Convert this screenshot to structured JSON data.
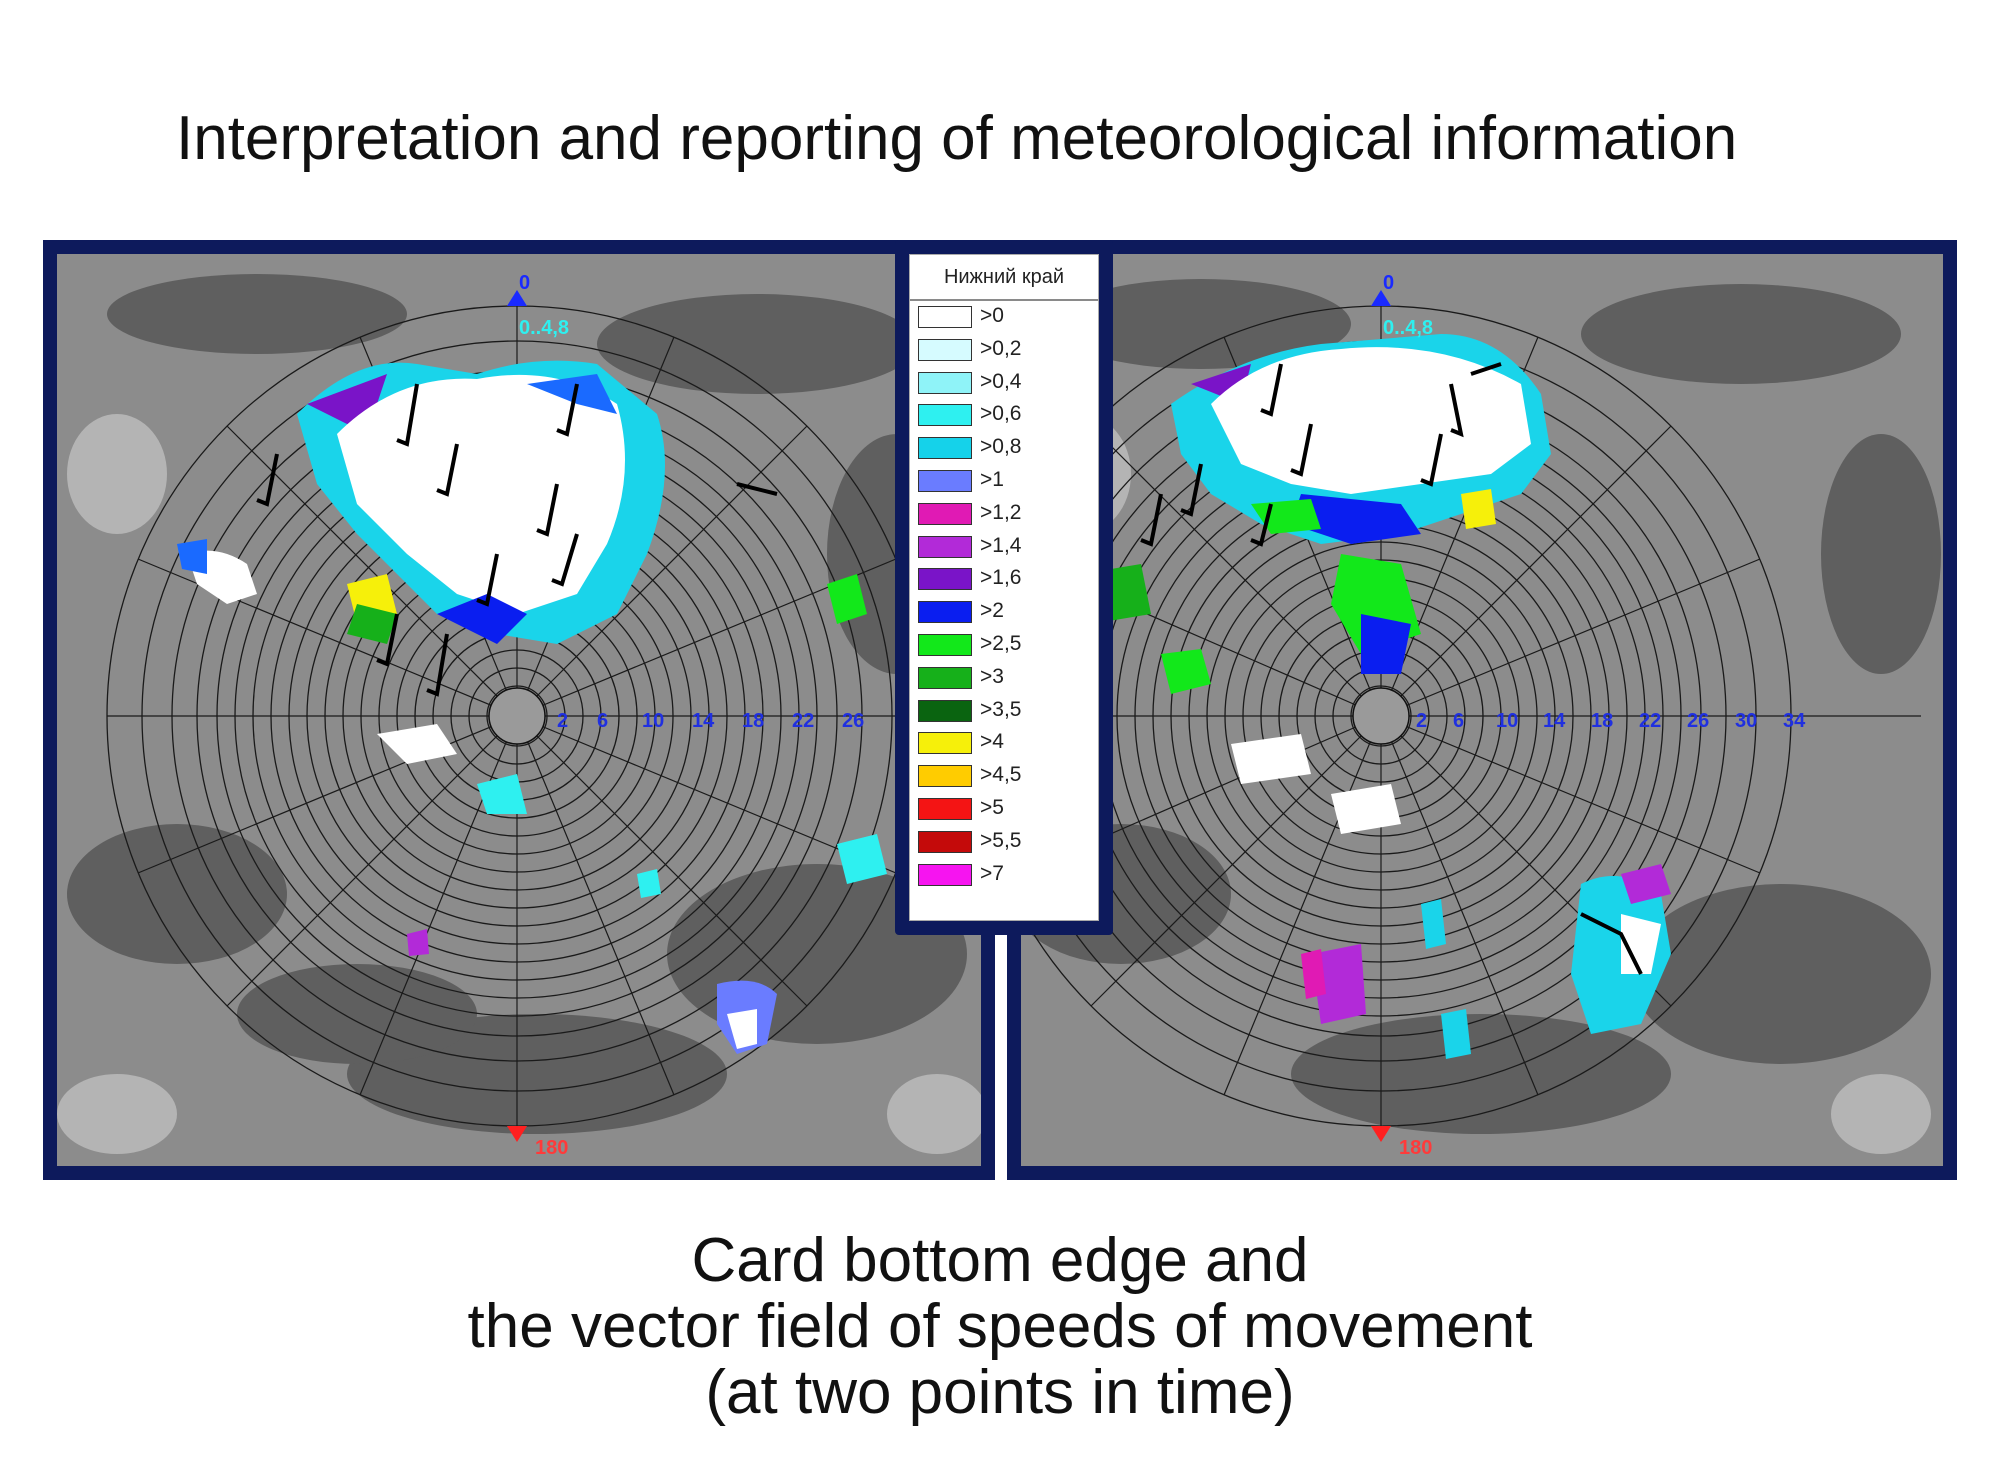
{
  "title": "Interpretation and reporting of meteorological information",
  "legend": {
    "header": "Нижний край",
    "items": [
      {
        "label": ">0",
        "color": "#ffffff"
      },
      {
        "label": ">0,2",
        "color": "#d6fbff"
      },
      {
        "label": ">0,4",
        "color": "#8ff3f8"
      },
      {
        "label": ">0,6",
        "color": "#2ef0f0"
      },
      {
        "label": ">0,8",
        "color": "#15d2ea"
      },
      {
        "label": ">1",
        "color": "#6a7cff"
      },
      {
        "label": ">1,2",
        "color": "#e01ab4"
      },
      {
        "label": ">1,4",
        "color": "#b22ad8"
      },
      {
        "label": ">1,6",
        "color": "#7a14c8"
      },
      {
        "label": ">2",
        "color": "#0a1ef0"
      },
      {
        "label": ">2,5",
        "color": "#12e81a"
      },
      {
        "label": ">3",
        "color": "#16b01a"
      },
      {
        "label": ">3,5",
        "color": "#0a6410"
      },
      {
        "label": ">4",
        "color": "#f6f00a"
      },
      {
        "label": ">4,5",
        "color": "#ffcc00"
      },
      {
        "label": ">5",
        "color": "#f41414"
      },
      {
        "label": ">5,5",
        "color": "#c40a0a"
      },
      {
        "label": ">7",
        "color": "#f614f0"
      }
    ]
  },
  "left_map": {
    "north": "0",
    "south": "180",
    "range_label": "0..4,8",
    "range_ticks": [
      "2",
      "6",
      "10",
      "14",
      "18",
      "22",
      "26"
    ]
  },
  "right_map": {
    "north": "0",
    "south": "180",
    "range_label": "0..4,8",
    "range_ticks": [
      "2",
      "6",
      "10",
      "14",
      "18",
      "22",
      "26",
      "30",
      "34"
    ]
  },
  "caption": {
    "line1": "Card bottom edge and",
    "line2": "the vector field of speeds of movement",
    "line3": "(at two points in time)"
  }
}
